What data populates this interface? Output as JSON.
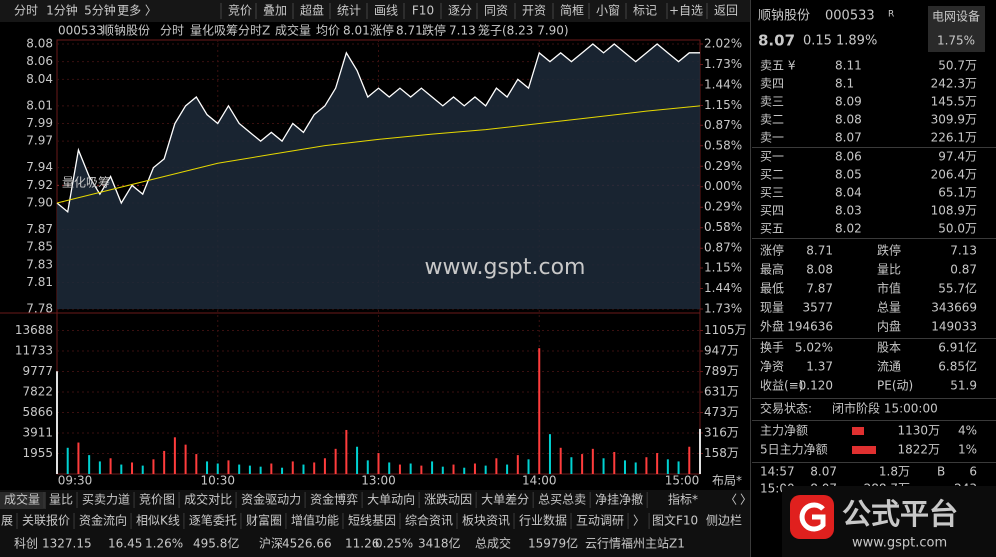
{
  "toolbar": {
    "tabs": [
      "分时",
      "1分钟",
      "5分钟",
      "更多 〉"
    ],
    "buttons": [
      "竞价",
      "叠加",
      "超盘",
      "统计",
      "画线",
      "F10",
      "逐分",
      "同资",
      "开资",
      "简框",
      "小窗",
      "标记",
      "+自选",
      "返回"
    ]
  },
  "chart_header": {
    "code": "000533",
    "name": "顺钠股份",
    "mode": "分时",
    "indicator": "量化吸筹分时Z",
    "volume": "成交量",
    "avg_label": "均价",
    "avg": 8.01,
    "limit_up_label": "涨停",
    "limit_up": 8.71,
    "limit_down_label": "跌停",
    "limit_down": 7.13,
    "cage": "笼子(8.23 7.90)"
  },
  "chart_data": {
    "type": "line",
    "annotation": "量化吸筹",
    "watermark": "www.gspt.com",
    "layout_button": "布局*",
    "price_color": "#ffffff",
    "avg_color": "#e6d800",
    "up_color": "#ff3c3c",
    "down_color": "#00d2d2",
    "xlim": [
      0,
      240
    ],
    "xticks": [
      {
        "value": 0,
        "label": "09:30"
      },
      {
        "value": 60,
        "label": "10:30"
      },
      {
        "value": 120,
        "label": "13:00"
      },
      {
        "value": 180,
        "label": "14:00"
      },
      {
        "value": 240,
        "label": "15:00"
      }
    ],
    "x": [
      0,
      4,
      8,
      12,
      16,
      20,
      24,
      28,
      32,
      36,
      40,
      44,
      48,
      52,
      56,
      60,
      64,
      68,
      72,
      76,
      80,
      84,
      88,
      92,
      96,
      100,
      104,
      108,
      112,
      116,
      120,
      124,
      128,
      132,
      136,
      140,
      144,
      148,
      152,
      156,
      160,
      164,
      168,
      172,
      176,
      180,
      184,
      188,
      192,
      196,
      200,
      204,
      208,
      212,
      216,
      220,
      224,
      228,
      232,
      236,
      240
    ],
    "values": [
      7.9,
      7.89,
      7.96,
      7.93,
      7.91,
      7.93,
      7.9,
      7.92,
      7.91,
      7.94,
      7.95,
      7.99,
      8.01,
      8.02,
      8.0,
      7.99,
      8.01,
      7.99,
      7.98,
      7.97,
      7.98,
      7.97,
      7.99,
      7.98,
      8.0,
      8.01,
      8.03,
      8.07,
      8.05,
      8.02,
      8.03,
      8.02,
      8.03,
      8.02,
      8.03,
      8.02,
      8.01,
      8.02,
      8.01,
      8.02,
      8.01,
      8.03,
      8.02,
      8.04,
      8.03,
      8.07,
      8.06,
      8.07,
      8.06,
      8.07,
      8.08,
      8.07,
      8.08,
      8.07,
      8.06,
      8.07,
      8.08,
      8.07,
      8.06,
      8.07,
      8.07
    ],
    "avg_x": [
      0,
      20,
      40,
      60,
      80,
      100,
      120,
      140,
      160,
      180,
      200,
      220,
      240
    ],
    "average": [
      7.9,
      7.915,
      7.93,
      7.945,
      7.955,
      7.965,
      7.972,
      7.978,
      7.983,
      7.99,
      7.997,
      8.004,
      8.01
    ],
    "volumes": [
      9800,
      2500,
      3000,
      1800,
      1200,
      1500,
      900,
      1100,
      800,
      1400,
      2200,
      3500,
      2800,
      1900,
      1200,
      1000,
      1300,
      900,
      800,
      700,
      1000,
      600,
      1200,
      900,
      1100,
      1500,
      2400,
      4200,
      2600,
      1300,
      2000,
      1100,
      900,
      1000,
      800,
      1200,
      700,
      900,
      600,
      1000,
      800,
      1500,
      900,
      1800,
      1400,
      12000,
      3800,
      2500,
      1600,
      1900,
      2400,
      1500,
      2100,
      1300,
      1100,
      1600,
      2000,
      1400,
      1200,
      2600,
      4300
    ],
    "ylim": [
      7.78,
      8.08
    ],
    "yticks": [
      8.08,
      8.06,
      8.04,
      8.01,
      7.99,
      7.97,
      7.94,
      7.92,
      {
        "value": 7.9,
        "label": "7.90"
      },
      7.87,
      7.85,
      7.83,
      7.81,
      7.78
    ],
    "y2lim": [
      -1.73,
      2.02
    ],
    "y2ticks": [
      {
        "value": 2.02,
        "label": "2.02%"
      },
      {
        "value": 1.73,
        "label": "1.73%"
      },
      {
        "value": 1.44,
        "label": "1.44%"
      },
      {
        "value": 1.15,
        "label": "1.15%"
      },
      {
        "value": 0.87,
        "label": "0.87%"
      },
      {
        "value": 0.58,
        "label": "0.58%"
      },
      {
        "value": 0.29,
        "label": "0.29%"
      },
      {
        "value": 0,
        "label": "0.00%"
      },
      {
        "value": -0.29,
        "label": "0.29%"
      },
      {
        "value": -0.58,
        "label": "0.58%"
      },
      {
        "value": -0.87,
        "label": "0.87%"
      },
      {
        "value": -1.15,
        "label": "1.15%"
      },
      {
        "value": -1.44,
        "label": "1.44%"
      },
      {
        "value": -1.73,
        "label": "1.73%"
      }
    ],
    "vol_ylim": [
      0,
      15643
    ],
    "vol_ticks": [
      13688,
      11733,
      9777,
      7822,
      5866,
      3911,
      1955
    ],
    "vol_y2lim": [
      0,
      1263
    ],
    "vol_y2ticks": [
      {
        "value": 1105,
        "label": "1105万"
      },
      {
        "value": 947,
        "label": "947万"
      },
      {
        "value": 789,
        "label": "789万"
      },
      {
        "value": 631,
        "label": "631万"
      },
      {
        "value": 473,
        "label": "473万"
      },
      {
        "value": 316,
        "label": "316万"
      },
      {
        "value": 158,
        "label": "158万"
      }
    ],
    "grid": true
  },
  "quote": {
    "name": "顺钠股份",
    "code": "000533",
    "flag": "R",
    "sector": "电网设备",
    "price": 8.07,
    "change": 0.15,
    "change_pct": "1.89%",
    "sector_pct": "1.75%"
  },
  "order_book": {
    "asks": [
      {
        "label": "卖五 ¥",
        "price": 8.11,
        "volume": "50.7万"
      },
      {
        "label": "卖四",
        "price": 8.1,
        "volume": "242.3万"
      },
      {
        "label": "卖三",
        "price": 8.09,
        "volume": "145.5万"
      },
      {
        "label": "卖二",
        "price": 8.08,
        "volume": "309.9万"
      },
      {
        "label": "卖一",
        "price": 8.07,
        "volume": "226.1万"
      }
    ],
    "bids": [
      {
        "label": "买一",
        "price": 8.06,
        "volume": "97.4万"
      },
      {
        "label": "买二",
        "price": 8.05,
        "volume": "206.4万"
      },
      {
        "label": "买三",
        "price": 8.04,
        "volume": "65.1万"
      },
      {
        "label": "买四",
        "price": 8.03,
        "volume": "108.9万"
      },
      {
        "label": "买五",
        "price": 8.02,
        "volume": "50.0万"
      }
    ]
  },
  "stats": [
    [
      "涨停",
      8.71,
      "跌停",
      7.13
    ],
    [
      "最高",
      8.08,
      "量比",
      0.87
    ],
    [
      "最低",
      7.87,
      "市值",
      "55.7亿"
    ],
    [
      "现量",
      3577,
      "总量",
      343669
    ],
    [
      "外盘",
      194636,
      "内盘",
      149033
    ],
    [
      "换手",
      "5.02%",
      "股本",
      "6.91亿"
    ],
    [
      "净资",
      1.37,
      "流通",
      "6.85亿"
    ],
    [
      "收益(≡)",
      "0.120",
      "PE(动)",
      51.9
    ]
  ],
  "trade_status": {
    "label": "交易状态:",
    "value": "闭市阶段 15:00:00"
  },
  "fund_flow": [
    {
      "label": "主力净额",
      "value": "1130万",
      "pct": "4%"
    },
    {
      "label": "5日主力净额",
      "value": "1822万",
      "pct": "1%"
    }
  ],
  "trades": [
    {
      "time": "14:57",
      "price": 8.07,
      "volume": "1.8万",
      "side": "B",
      "count": 6
    },
    {
      "time": "15:00",
      "price": 8.07,
      "volume": "288.7万",
      "count": 243
    }
  ],
  "indicator_tabs": [
    "成交量",
    "量比",
    "买卖力道",
    "竞价图",
    "成交对比",
    "资金驱动力",
    "资金博弈",
    "大单动向",
    "涨跌动因",
    "大单差分",
    "总买总卖",
    "净挂净撤"
  ],
  "indicator_controls": [
    "指标*",
    "〈",
    "〉"
  ],
  "function_tabs": [
    "展",
    "关联报价",
    "资金流向",
    "相似K线",
    "逐笔委托",
    "财富圈",
    "增值功能",
    "短线基因",
    "综合资讯",
    "板块资讯",
    "行业数据",
    "互动调研",
    "〉"
  ],
  "function_right": [
    "图文F10",
    "侧边栏"
  ],
  "status_bar": [
    "科创",
    "1327.15",
    "16.45",
    "1.26%",
    "495.8亿",
    "沪深",
    "4526.66",
    "11.26",
    "0.25%",
    "3418亿",
    "总成交",
    "15979亿",
    "云行情福州主站Z1"
  ],
  "logo": {
    "text": "公式平台",
    "url": "www.gspt.com"
  }
}
